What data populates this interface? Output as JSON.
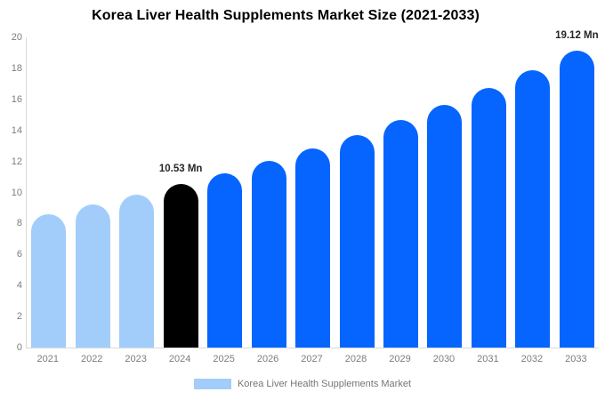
{
  "title": "Korea Liver Health Supplements Market Size (2021-2033)",
  "legend": {
    "label": "Korea Liver Health Supplements Market"
  },
  "colors": {
    "historical_bar": "#A2CDFB",
    "highlight_bar": "#000000",
    "forecast_bar": "#0565FE",
    "axis_line": "#D9D9D9",
    "tick_label": "#7D7D7D",
    "annotation_text": "#262626",
    "title_text": "#000000",
    "background": "#FFFFFF"
  },
  "chart_data": {
    "type": "bar",
    "title": "Korea Liver Health Supplements Market Size (2021-2033)",
    "xlabel": "",
    "ylabel": "",
    "unit": "Mn",
    "ylim": [
      0,
      20
    ],
    "yticks": [
      0,
      2,
      4,
      6,
      8,
      10,
      12,
      14,
      16,
      18,
      20
    ],
    "grid": false,
    "legend_position": "bottom",
    "categories": [
      "2021",
      "2022",
      "2023",
      "2024",
      "2025",
      "2026",
      "2027",
      "2028",
      "2029",
      "2030",
      "2031",
      "2032",
      "2033"
    ],
    "values": [
      8.6,
      9.2,
      9.85,
      10.53,
      11.25,
      12.02,
      12.84,
      13.72,
      14.66,
      15.67,
      16.74,
      17.89,
      19.12
    ],
    "segments": [
      "historical",
      "historical",
      "historical",
      "highlight",
      "forecast",
      "forecast",
      "forecast",
      "forecast",
      "forecast",
      "forecast",
      "forecast",
      "forecast",
      "forecast"
    ],
    "data_labels": [
      {
        "category": "2024",
        "text": "10.53 Mn"
      },
      {
        "category": "2033",
        "text": "19.12 Mn"
      }
    ]
  }
}
